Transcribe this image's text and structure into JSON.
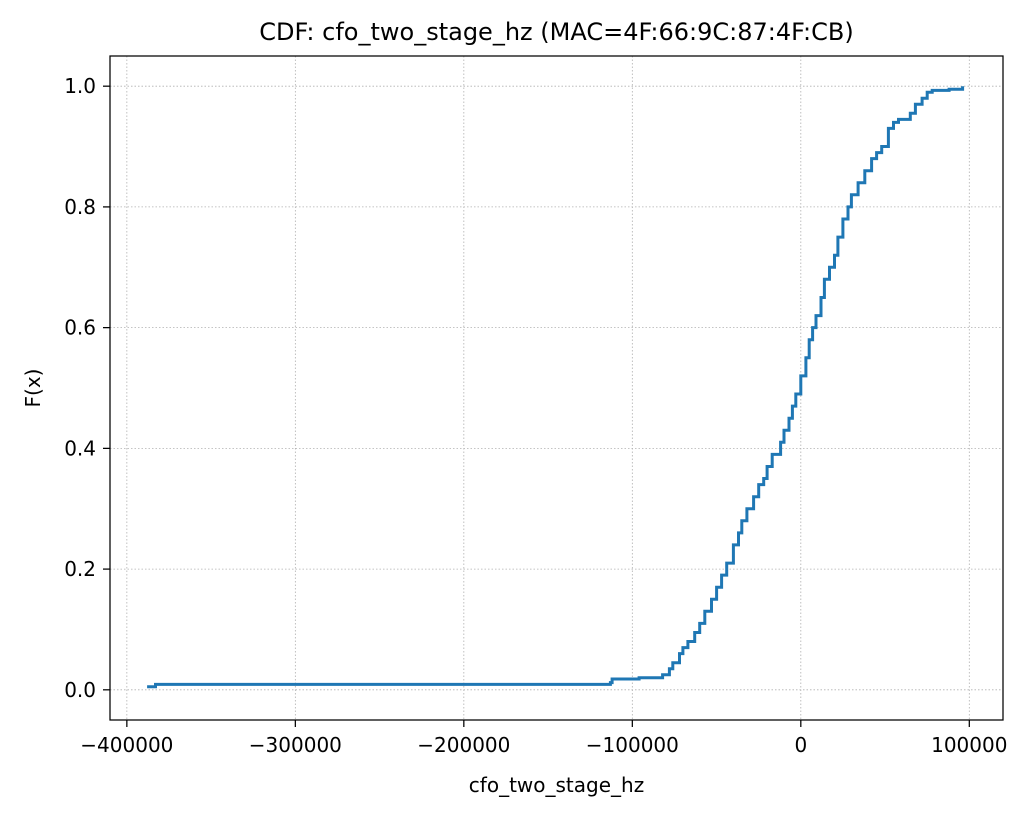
{
  "chart_data": {
    "type": "line",
    "title": "CDF: cfo_two_stage_hz (MAC=4F:66:9C:87:4F:CB)",
    "xlabel": "cfo_two_stage_hz",
    "ylabel": "F(x)",
    "xlim": [
      -410000,
      120000
    ],
    "ylim": [
      -0.05,
      1.05
    ],
    "x_ticks": [
      -400000,
      -300000,
      -200000,
      -100000,
      0,
      100000
    ],
    "x_tick_labels": [
      "−400000",
      "−300000",
      "−200000",
      "−100000",
      "0",
      "100000"
    ],
    "y_ticks": [
      0.0,
      0.2,
      0.4,
      0.6,
      0.8,
      1.0
    ],
    "y_tick_labels": [
      "0.0",
      "0.2",
      "0.4",
      "0.6",
      "0.8",
      "1.0"
    ],
    "grid": true,
    "series": [
      {
        "color": "#1f77b4",
        "x": [
          -388000,
          -384000,
          -383000,
          -115000,
          -113000,
          -112000,
          -100000,
          -97000,
          -96000,
          -85000,
          -82000,
          -78000,
          -76000,
          -72000,
          -70000,
          -67000,
          -63000,
          -60000,
          -57000,
          -53000,
          -50000,
          -47000,
          -44000,
          -40000,
          -37000,
          -35000,
          -32000,
          -28000,
          -25000,
          -22000,
          -20000,
          -17000,
          -12000,
          -10000,
          -7000,
          -5000,
          -3000,
          0,
          3000,
          5000,
          7000,
          9000,
          12000,
          14000,
          17000,
          20000,
          22000,
          25000,
          28000,
          30000,
          34000,
          38000,
          42000,
          45000,
          48000,
          52000,
          55000,
          58000,
          62000,
          65000,
          68000,
          72000,
          75000,
          78000,
          82000,
          88000,
          92000,
          95000,
          96000,
          96000
        ],
        "y": [
          0.005,
          0.005,
          0.009,
          0.009,
          0.012,
          0.018,
          0.018,
          0.018,
          0.02,
          0.02,
          0.025,
          0.035,
          0.045,
          0.06,
          0.07,
          0.08,
          0.095,
          0.11,
          0.13,
          0.15,
          0.17,
          0.19,
          0.21,
          0.24,
          0.26,
          0.28,
          0.3,
          0.32,
          0.34,
          0.35,
          0.37,
          0.39,
          0.41,
          0.43,
          0.45,
          0.47,
          0.49,
          0.52,
          0.55,
          0.58,
          0.6,
          0.62,
          0.65,
          0.68,
          0.7,
          0.72,
          0.75,
          0.78,
          0.8,
          0.82,
          0.84,
          0.86,
          0.88,
          0.89,
          0.9,
          0.93,
          0.94,
          0.945,
          0.945,
          0.955,
          0.97,
          0.98,
          0.99,
          0.993,
          0.993,
          0.995,
          0.995,
          0.995,
          0.995,
          1.0
        ]
      }
    ]
  }
}
